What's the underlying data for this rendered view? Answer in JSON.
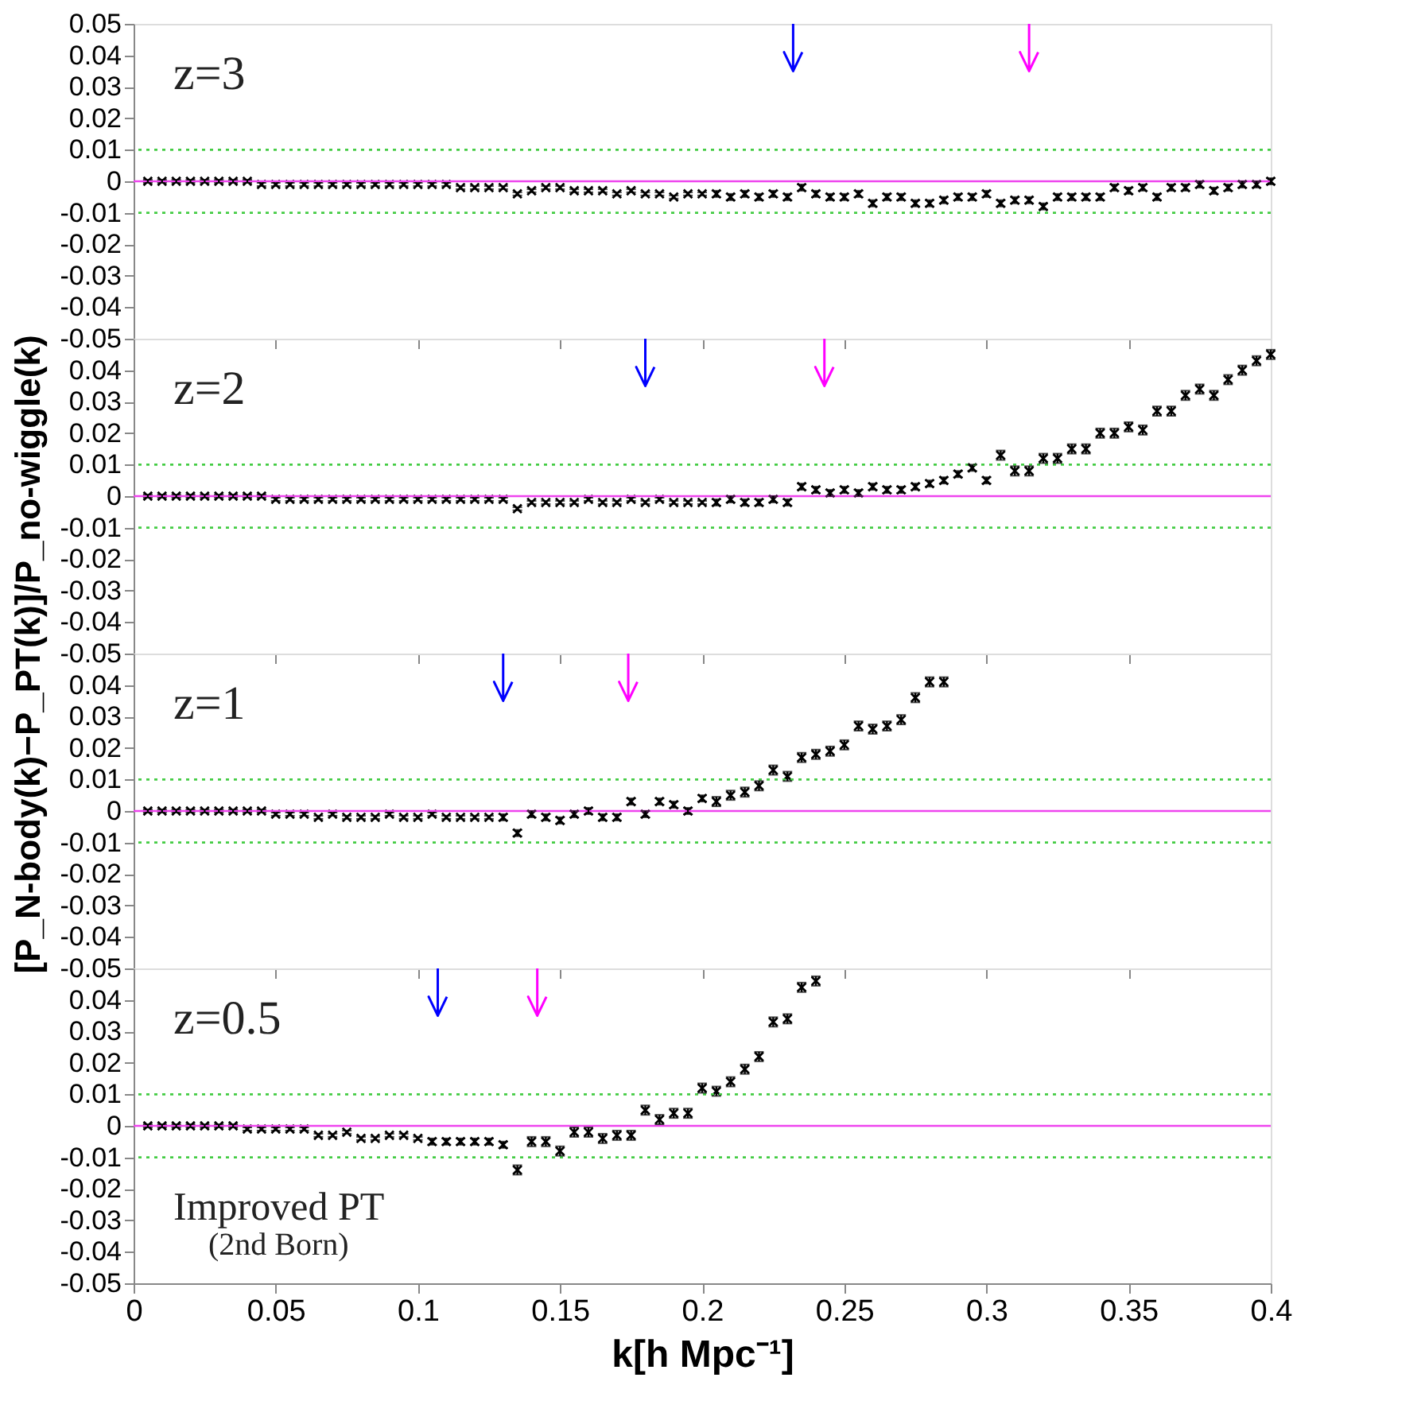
{
  "chart_data": [
    {
      "type": "scatter",
      "marker": "cross",
      "xlim": [
        0,
        0.4
      ],
      "xticks": [
        0,
        0.05,
        0.1,
        0.15,
        0.2,
        0.25,
        0.3,
        0.35,
        0.4
      ],
      "ylim": [
        -0.05,
        0.05
      ],
      "yticks": [
        -0.05,
        -0.04,
        -0.03,
        -0.02,
        -0.01,
        0,
        0.01,
        0.02,
        0.03,
        0.04,
        0.05
      ],
      "tick_labels": "y",
      "annotations": [
        "z=3"
      ],
      "ref_lines": [
        {
          "axis": "y",
          "value": 0,
          "color": "#ee44ee",
          "line_style": "solid"
        },
        {
          "axis": "y",
          "value": 0.01,
          "color": "#44cc44",
          "line_style": "dotted"
        },
        {
          "axis": "y",
          "value": -0.01,
          "color": "#44cc44",
          "line_style": "dotted"
        },
        {
          "axis": "x",
          "value": 0.232,
          "color": "#0000ff"
        },
        {
          "axis": "x",
          "value": 0.315,
          "color": "#ff00ff"
        }
      ],
      "series": [
        {
          "color": "#000000",
          "x": [
            0.005,
            0.01,
            0.015,
            0.02,
            0.025,
            0.03,
            0.035,
            0.04,
            0.045,
            0.05,
            0.055,
            0.06,
            0.065,
            0.07,
            0.075,
            0.08,
            0.085,
            0.09,
            0.095,
            0.1,
            0.105,
            0.11,
            0.115,
            0.12,
            0.125,
            0.13,
            0.135,
            0.14,
            0.145,
            0.15,
            0.155,
            0.16,
            0.165,
            0.17,
            0.175,
            0.18,
            0.185,
            0.19,
            0.195,
            0.2,
            0.205,
            0.21,
            0.215,
            0.22,
            0.225,
            0.23,
            0.235,
            0.24,
            0.245,
            0.25,
            0.255,
            0.26,
            0.265,
            0.27,
            0.275,
            0.28,
            0.285,
            0.29,
            0.295,
            0.3,
            0.305,
            0.31,
            0.315,
            0.32,
            0.325,
            0.33,
            0.335,
            0.34,
            0.345,
            0.35,
            0.355,
            0.36,
            0.365,
            0.37,
            0.375,
            0.38,
            0.385,
            0.39,
            0.395,
            0.4
          ],
          "values": [
            0,
            0,
            0,
            0,
            0,
            0,
            0,
            0,
            -0.001,
            -0.001,
            -0.001,
            -0.001,
            -0.001,
            -0.001,
            -0.001,
            -0.001,
            -0.001,
            -0.001,
            -0.001,
            -0.001,
            -0.001,
            -0.001,
            -0.002,
            -0.002,
            -0.002,
            -0.002,
            -0.004,
            -0.003,
            -0.002,
            -0.002,
            -0.003,
            -0.003,
            -0.003,
            -0.004,
            -0.003,
            -0.004,
            -0.004,
            -0.005,
            -0.004,
            -0.004,
            -0.004,
            -0.005,
            -0.004,
            -0.005,
            -0.004,
            -0.005,
            -0.002,
            -0.004,
            -0.005,
            -0.005,
            -0.004,
            -0.007,
            -0.005,
            -0.005,
            -0.007,
            -0.007,
            -0.006,
            -0.005,
            -0.005,
            -0.004,
            -0.007,
            -0.006,
            -0.006,
            -0.008,
            -0.005,
            -0.005,
            -0.005,
            -0.005,
            -0.002,
            -0.003,
            -0.002,
            -0.005,
            -0.002,
            -0.002,
            -0.001,
            -0.003,
            -0.002,
            -0.001,
            -0.001,
            0
          ],
          "errors": [
            0.0005,
            0.0005,
            0.0005,
            0.0005,
            0.0005,
            0.0005,
            0.0005,
            0.0005,
            0.0005,
            0.0005,
            0.0005,
            0.0005,
            0.0005,
            0.0005,
            0.0005,
            0.0005,
            0.0005,
            0.0005,
            0.0005,
            0.0005,
            0.0005,
            0.0005,
            0.0005,
            0.0005,
            0.0005,
            0.0005,
            0.0005,
            0.0005,
            0.0005,
            0.0005,
            0.0005,
            0.0005,
            0.0005,
            0.0005,
            0.0005,
            0.0005,
            0.0005,
            0.0005,
            0.0005,
            0.0005,
            0.001,
            0.001,
            0.001,
            0.001,
            0.001,
            0.001,
            0.001,
            0.001,
            0.001,
            0.001,
            0.001,
            0.001,
            0.001,
            0.001,
            0.001,
            0.001,
            0.001,
            0.001,
            0.001,
            0.001,
            0.001,
            0.001,
            0.001,
            0.001,
            0.001,
            0.001,
            0.001,
            0.001,
            0.001,
            0.001,
            0.001,
            0.001,
            0.001,
            0.001,
            0.001,
            0.001,
            0.001,
            0.001,
            0.001,
            0.001
          ]
        }
      ]
    },
    {
      "type": "scatter",
      "marker": "cross",
      "xlim": [
        0,
        0.4
      ],
      "xticks": [
        0,
        0.05,
        0.1,
        0.15,
        0.2,
        0.25,
        0.3,
        0.35,
        0.4
      ],
      "ylim": [
        -0.05,
        0.05
      ],
      "yticks": [
        -0.05,
        -0.04,
        -0.03,
        -0.02,
        -0.01,
        0,
        0.01,
        0.02,
        0.03,
        0.04
      ],
      "tick_labels": "y",
      "ylabel": "[P_N-body(k)−P_PT(k)]/P_no-wiggle(k)",
      "annotations": [
        "z=2"
      ],
      "ref_lines": [
        {
          "axis": "y",
          "value": 0,
          "color": "#ee44ee",
          "line_style": "solid"
        },
        {
          "axis": "y",
          "value": 0.01,
          "color": "#44cc44",
          "line_style": "dotted"
        },
        {
          "axis": "y",
          "value": -0.01,
          "color": "#44cc44",
          "line_style": "dotted"
        },
        {
          "axis": "x",
          "value": 0.18,
          "color": "#0000ff"
        },
        {
          "axis": "x",
          "value": 0.243,
          "color": "#ff00ff"
        }
      ],
      "series": [
        {
          "color": "#000000",
          "x": [
            0.005,
            0.01,
            0.015,
            0.02,
            0.025,
            0.03,
            0.035,
            0.04,
            0.045,
            0.05,
            0.055,
            0.06,
            0.065,
            0.07,
            0.075,
            0.08,
            0.085,
            0.09,
            0.095,
            0.1,
            0.105,
            0.11,
            0.115,
            0.12,
            0.125,
            0.13,
            0.135,
            0.14,
            0.145,
            0.15,
            0.155,
            0.16,
            0.165,
            0.17,
            0.175,
            0.18,
            0.185,
            0.19,
            0.195,
            0.2,
            0.205,
            0.21,
            0.215,
            0.22,
            0.225,
            0.23,
            0.235,
            0.24,
            0.245,
            0.25,
            0.255,
            0.26,
            0.265,
            0.27,
            0.275,
            0.28,
            0.285,
            0.29,
            0.295,
            0.3,
            0.305,
            0.31,
            0.315,
            0.32,
            0.325,
            0.33,
            0.335,
            0.34,
            0.345,
            0.35,
            0.355,
            0.36,
            0.365,
            0.37,
            0.375,
            0.38,
            0.385,
            0.39,
            0.395,
            0.4
          ],
          "values": [
            0,
            0,
            0,
            0,
            0,
            0,
            0,
            0,
            0,
            -0.001,
            -0.001,
            -0.001,
            -0.001,
            -0.001,
            -0.001,
            -0.001,
            -0.001,
            -0.001,
            -0.001,
            -0.001,
            -0.001,
            -0.001,
            -0.001,
            -0.001,
            -0.001,
            -0.001,
            -0.004,
            -0.002,
            -0.002,
            -0.002,
            -0.002,
            -0.001,
            -0.002,
            -0.002,
            -0.001,
            -0.002,
            -0.001,
            -0.002,
            -0.002,
            -0.002,
            -0.002,
            -0.001,
            -0.002,
            -0.002,
            -0.001,
            -0.002,
            0.003,
            0.002,
            0.001,
            0.002,
            0.001,
            0.003,
            0.002,
            0.002,
            0.003,
            0.004,
            0.005,
            0.007,
            0.009,
            0.005,
            0.013,
            0.008,
            0.008,
            0.012,
            0.012,
            0.015,
            0.015,
            0.02,
            0.02,
            0.022,
            0.021,
            0.027,
            0.027,
            0.032,
            0.034,
            0.032,
            0.037,
            0.04,
            0.043,
            0.045
          ],
          "errors": [
            0.0005,
            0.0005,
            0.0005,
            0.0005,
            0.0005,
            0.0005,
            0.0005,
            0.0005,
            0.0005,
            0.0005,
            0.0005,
            0.0005,
            0.0005,
            0.0005,
            0.0005,
            0.0005,
            0.0005,
            0.0005,
            0.0005,
            0.0005,
            0.0005,
            0.0005,
            0.0005,
            0.0005,
            0.0005,
            0.0005,
            0.0005,
            0.0005,
            0.0005,
            0.0005,
            0.0005,
            0.0005,
            0.0005,
            0.0005,
            0.0005,
            0.0005,
            0.0005,
            0.0005,
            0.0005,
            0.0005,
            0.001,
            0.001,
            0.001,
            0.001,
            0.001,
            0.001,
            0.001,
            0.001,
            0.001,
            0.001,
            0.001,
            0.001,
            0.001,
            0.001,
            0.001,
            0.001,
            0.001,
            0.001,
            0.001,
            0.001,
            0.0015,
            0.0015,
            0.0015,
            0.0015,
            0.0015,
            0.0015,
            0.0015,
            0.0015,
            0.0015,
            0.0015,
            0.0015,
            0.0015,
            0.0015,
            0.0015,
            0.0015,
            0.0015,
            0.0015,
            0.0015,
            0.0015,
            0.0015
          ]
        }
      ]
    },
    {
      "type": "scatter",
      "marker": "cross",
      "xlim": [
        0,
        0.4
      ],
      "xticks": [
        0,
        0.05,
        0.1,
        0.15,
        0.2,
        0.25,
        0.3,
        0.35,
        0.4
      ],
      "ylim": [
        -0.05,
        0.05
      ],
      "yticks": [
        -0.05,
        -0.04,
        -0.03,
        -0.02,
        -0.01,
        0,
        0.01,
        0.02,
        0.03,
        0.04
      ],
      "tick_labels": "y",
      "annotations": [
        "z=1"
      ],
      "ref_lines": [
        {
          "axis": "y",
          "value": 0,
          "color": "#ee44ee",
          "line_style": "solid"
        },
        {
          "axis": "y",
          "value": 0.01,
          "color": "#44cc44",
          "line_style": "dotted"
        },
        {
          "axis": "y",
          "value": -0.01,
          "color": "#44cc44",
          "line_style": "dotted"
        },
        {
          "axis": "x",
          "value": 0.13,
          "color": "#0000ff"
        },
        {
          "axis": "x",
          "value": 0.174,
          "color": "#ff00ff"
        }
      ],
      "series": [
        {
          "color": "#000000",
          "x": [
            0.005,
            0.01,
            0.015,
            0.02,
            0.025,
            0.03,
            0.035,
            0.04,
            0.045,
            0.05,
            0.055,
            0.06,
            0.065,
            0.07,
            0.075,
            0.08,
            0.085,
            0.09,
            0.095,
            0.1,
            0.105,
            0.11,
            0.115,
            0.12,
            0.125,
            0.13,
            0.135,
            0.14,
            0.145,
            0.15,
            0.155,
            0.16,
            0.165,
            0.17,
            0.175,
            0.18,
            0.185,
            0.19,
            0.195,
            0.2,
            0.205,
            0.21,
            0.215,
            0.22,
            0.225,
            0.23,
            0.235,
            0.24,
            0.245,
            0.25,
            0.255,
            0.26,
            0.265,
            0.27,
            0.275,
            0.28,
            0.285
          ],
          "values": [
            0,
            0,
            0,
            0,
            0,
            0,
            0,
            0,
            0,
            -0.001,
            -0.001,
            -0.001,
            -0.002,
            -0.001,
            -0.002,
            -0.002,
            -0.002,
            -0.001,
            -0.002,
            -0.002,
            -0.001,
            -0.002,
            -0.002,
            -0.002,
            -0.002,
            -0.002,
            -0.007,
            -0.001,
            -0.002,
            -0.003,
            -0.001,
            0,
            -0.002,
            -0.002,
            0.003,
            -0.001,
            0.003,
            0.002,
            0,
            0.004,
            0.003,
            0.005,
            0.006,
            0.008,
            0.013,
            0.011,
            0.017,
            0.018,
            0.019,
            0.021,
            0.027,
            0.026,
            0.027,
            0.029,
            0.036,
            0.041,
            0.041
          ],
          "errors": [
            0.0005,
            0.0005,
            0.0005,
            0.0005,
            0.0005,
            0.0005,
            0.0005,
            0.0005,
            0.0005,
            0.0005,
            0.0005,
            0.0005,
            0.0005,
            0.0005,
            0.0005,
            0.0005,
            0.0005,
            0.0005,
            0.0005,
            0.0005,
            0.0005,
            0.0005,
            0.0005,
            0.0005,
            0.0005,
            0.001,
            0.001,
            0.001,
            0.001,
            0.001,
            0.001,
            0.001,
            0.001,
            0.001,
            0.001,
            0.001,
            0.001,
            0.001,
            0.001,
            0.001,
            0.0015,
            0.0015,
            0.0015,
            0.0015,
            0.0015,
            0.0015,
            0.0015,
            0.0015,
            0.0015,
            0.0015,
            0.0015,
            0.0015,
            0.0015,
            0.0015,
            0.0015,
            0.0015,
            0.0015
          ]
        }
      ]
    },
    {
      "type": "scatter",
      "marker": "cross",
      "xlim": [
        0,
        0.4
      ],
      "xticks": [
        0,
        0.05,
        0.1,
        0.15,
        0.2,
        0.25,
        0.3,
        0.35,
        0.4
      ],
      "ylim": [
        -0.05,
        0.05
      ],
      "yticks": [
        -0.05,
        -0.04,
        -0.03,
        -0.02,
        -0.01,
        0,
        0.01,
        0.02,
        0.03,
        0.04
      ],
      "xlabel": "k[h Mpc⁻¹]",
      "annotations": [
        "z=0.5",
        "Improved PT",
        "(2nd Born)"
      ],
      "ref_lines": [
        {
          "axis": "y",
          "value": 0,
          "color": "#ee44ee",
          "line_style": "solid"
        },
        {
          "axis": "y",
          "value": 0.01,
          "color": "#44cc44",
          "line_style": "dotted"
        },
        {
          "axis": "y",
          "value": -0.01,
          "color": "#44cc44",
          "line_style": "dotted"
        },
        {
          "axis": "x",
          "value": 0.107,
          "color": "#0000ff"
        },
        {
          "axis": "x",
          "value": 0.142,
          "color": "#ff00ff"
        }
      ],
      "series": [
        {
          "color": "#000000",
          "x": [
            0.005,
            0.01,
            0.015,
            0.02,
            0.025,
            0.03,
            0.035,
            0.04,
            0.045,
            0.05,
            0.055,
            0.06,
            0.065,
            0.07,
            0.075,
            0.08,
            0.085,
            0.09,
            0.095,
            0.1,
            0.105,
            0.11,
            0.115,
            0.12,
            0.125,
            0.13,
            0.135,
            0.14,
            0.145,
            0.15,
            0.155,
            0.16,
            0.165,
            0.17,
            0.175,
            0.18,
            0.185,
            0.19,
            0.195,
            0.2,
            0.205,
            0.21,
            0.215,
            0.22,
            0.225,
            0.23,
            0.235,
            0.24
          ],
          "values": [
            0,
            0,
            0,
            0,
            0,
            0,
            0,
            -0.001,
            -0.001,
            -0.001,
            -0.001,
            -0.001,
            -0.003,
            -0.003,
            -0.002,
            -0.004,
            -0.004,
            -0.003,
            -0.003,
            -0.004,
            -0.005,
            -0.005,
            -0.005,
            -0.005,
            -0.005,
            -0.006,
            -0.014,
            -0.005,
            -0.005,
            -0.008,
            -0.002,
            -0.002,
            -0.004,
            -0.003,
            -0.003,
            0.005,
            0.002,
            0.004,
            0.004,
            0.012,
            0.011,
            0.014,
            0.018,
            0.022,
            0.033,
            0.034,
            0.044,
            0.046
          ],
          "errors": [
            0.0005,
            0.0005,
            0.0005,
            0.0005,
            0.0005,
            0.0005,
            0.0005,
            0.0005,
            0.0005,
            0.0005,
            0.0005,
            0.0005,
            0.0005,
            0.0005,
            0.0005,
            0.0005,
            0.0005,
            0.0005,
            0.0005,
            0.0005,
            0.001,
            0.001,
            0.001,
            0.001,
            0.001,
            0.001,
            0.0015,
            0.0015,
            0.0015,
            0.0015,
            0.0015,
            0.0015,
            0.0015,
            0.0015,
            0.0015,
            0.0015,
            0.0015,
            0.0015,
            0.0015,
            0.0015,
            0.0015,
            0.0015,
            0.0015,
            0.0015,
            0.0015,
            0.0015,
            0.0015,
            0.0015
          ]
        }
      ]
    }
  ]
}
